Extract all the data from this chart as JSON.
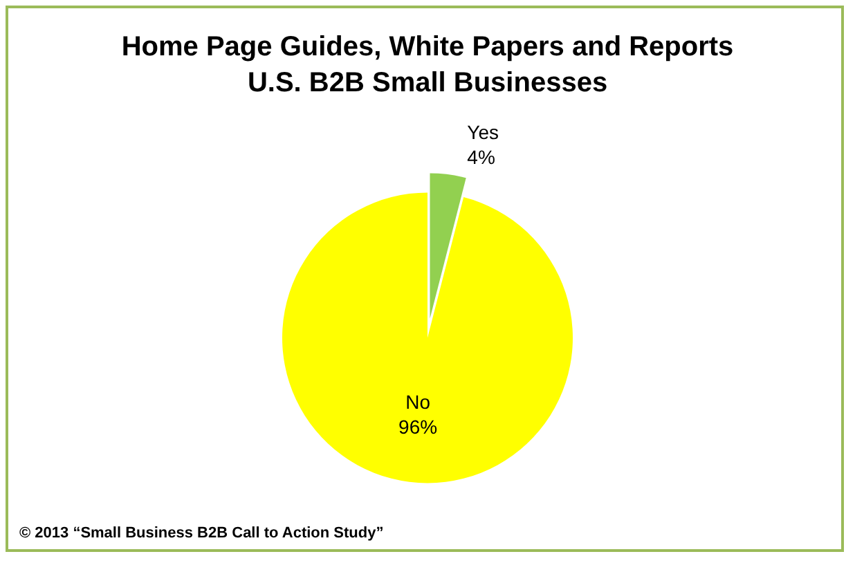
{
  "chart_data": {
    "type": "pie",
    "title": "Home Page Guides, White Papers and Reports\nU.S. B2B Small Businesses",
    "categories": [
      "Yes",
      "No"
    ],
    "values": [
      4,
      96
    ],
    "value_labels": [
      "4%",
      "96%"
    ],
    "colors": [
      "#92d050",
      "#ffff00"
    ],
    "legend": false,
    "annotations": [
      "© 2013 “Small Business B2B Call to Action Study”"
    ]
  }
}
